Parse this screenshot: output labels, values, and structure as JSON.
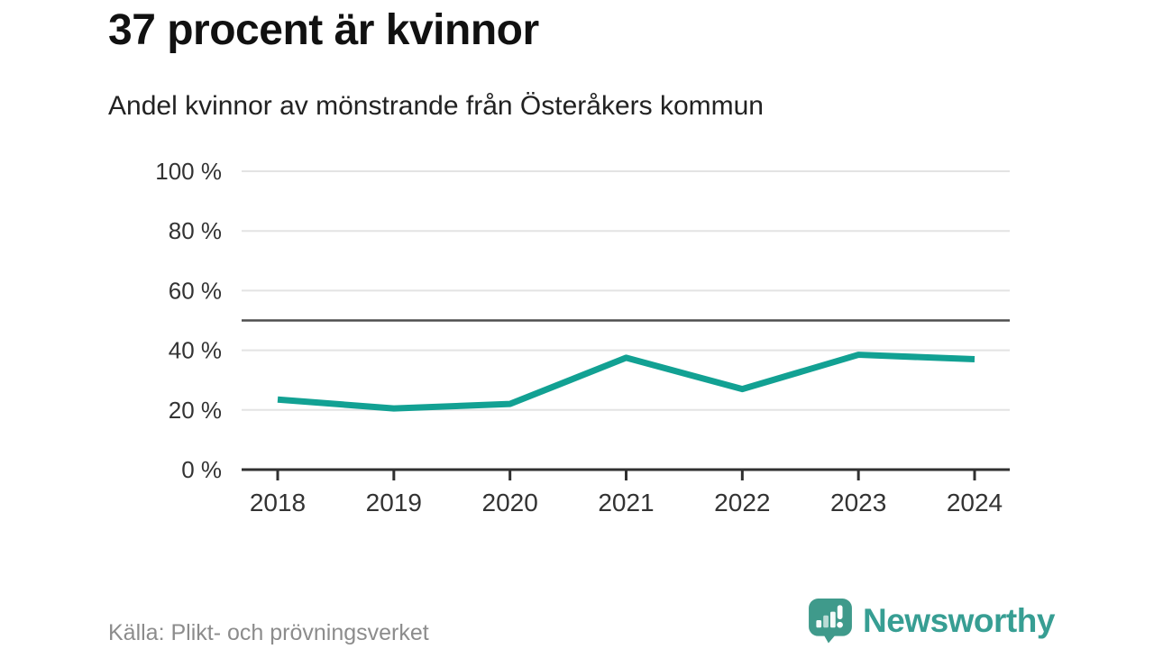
{
  "header": {
    "title": "37 procent är kvinnor",
    "subtitle": "Andel kvinnor av mönstrande från Österåkers kommun"
  },
  "chart_data": {
    "type": "line",
    "title": "37 procent är kvinnor",
    "subtitle": "Andel kvinnor av mönstrande från Österåkers kommun",
    "x": [
      2018,
      2019,
      2020,
      2021,
      2022,
      2023,
      2024
    ],
    "series": [
      {
        "name": "Andel kvinnor av mönstrande",
        "values": [
          23.5,
          20.5,
          22,
          37.5,
          27,
          38.5,
          37
        ]
      }
    ],
    "xlabel": "",
    "ylabel": "",
    "ylim": [
      0,
      100
    ],
    "yticks": [
      0,
      20,
      40,
      60,
      80,
      100
    ],
    "ytick_format": "{v} %",
    "reference_line": 50,
    "grid": true,
    "legend": "none",
    "line_color": "#12a193"
  },
  "footer": {
    "source": "Källa: Plikt- och prövningsverket",
    "brand": "Newsworthy"
  },
  "colors": {
    "line": "#12a193",
    "gridline": "#e3e3e3",
    "reference_line": "#4f4f4f",
    "axis": "#303030",
    "tick_label": "#333333",
    "title": "#111111",
    "subtitle": "#222222",
    "source": "#8c8c8c",
    "brand_teal": "#379e93"
  }
}
